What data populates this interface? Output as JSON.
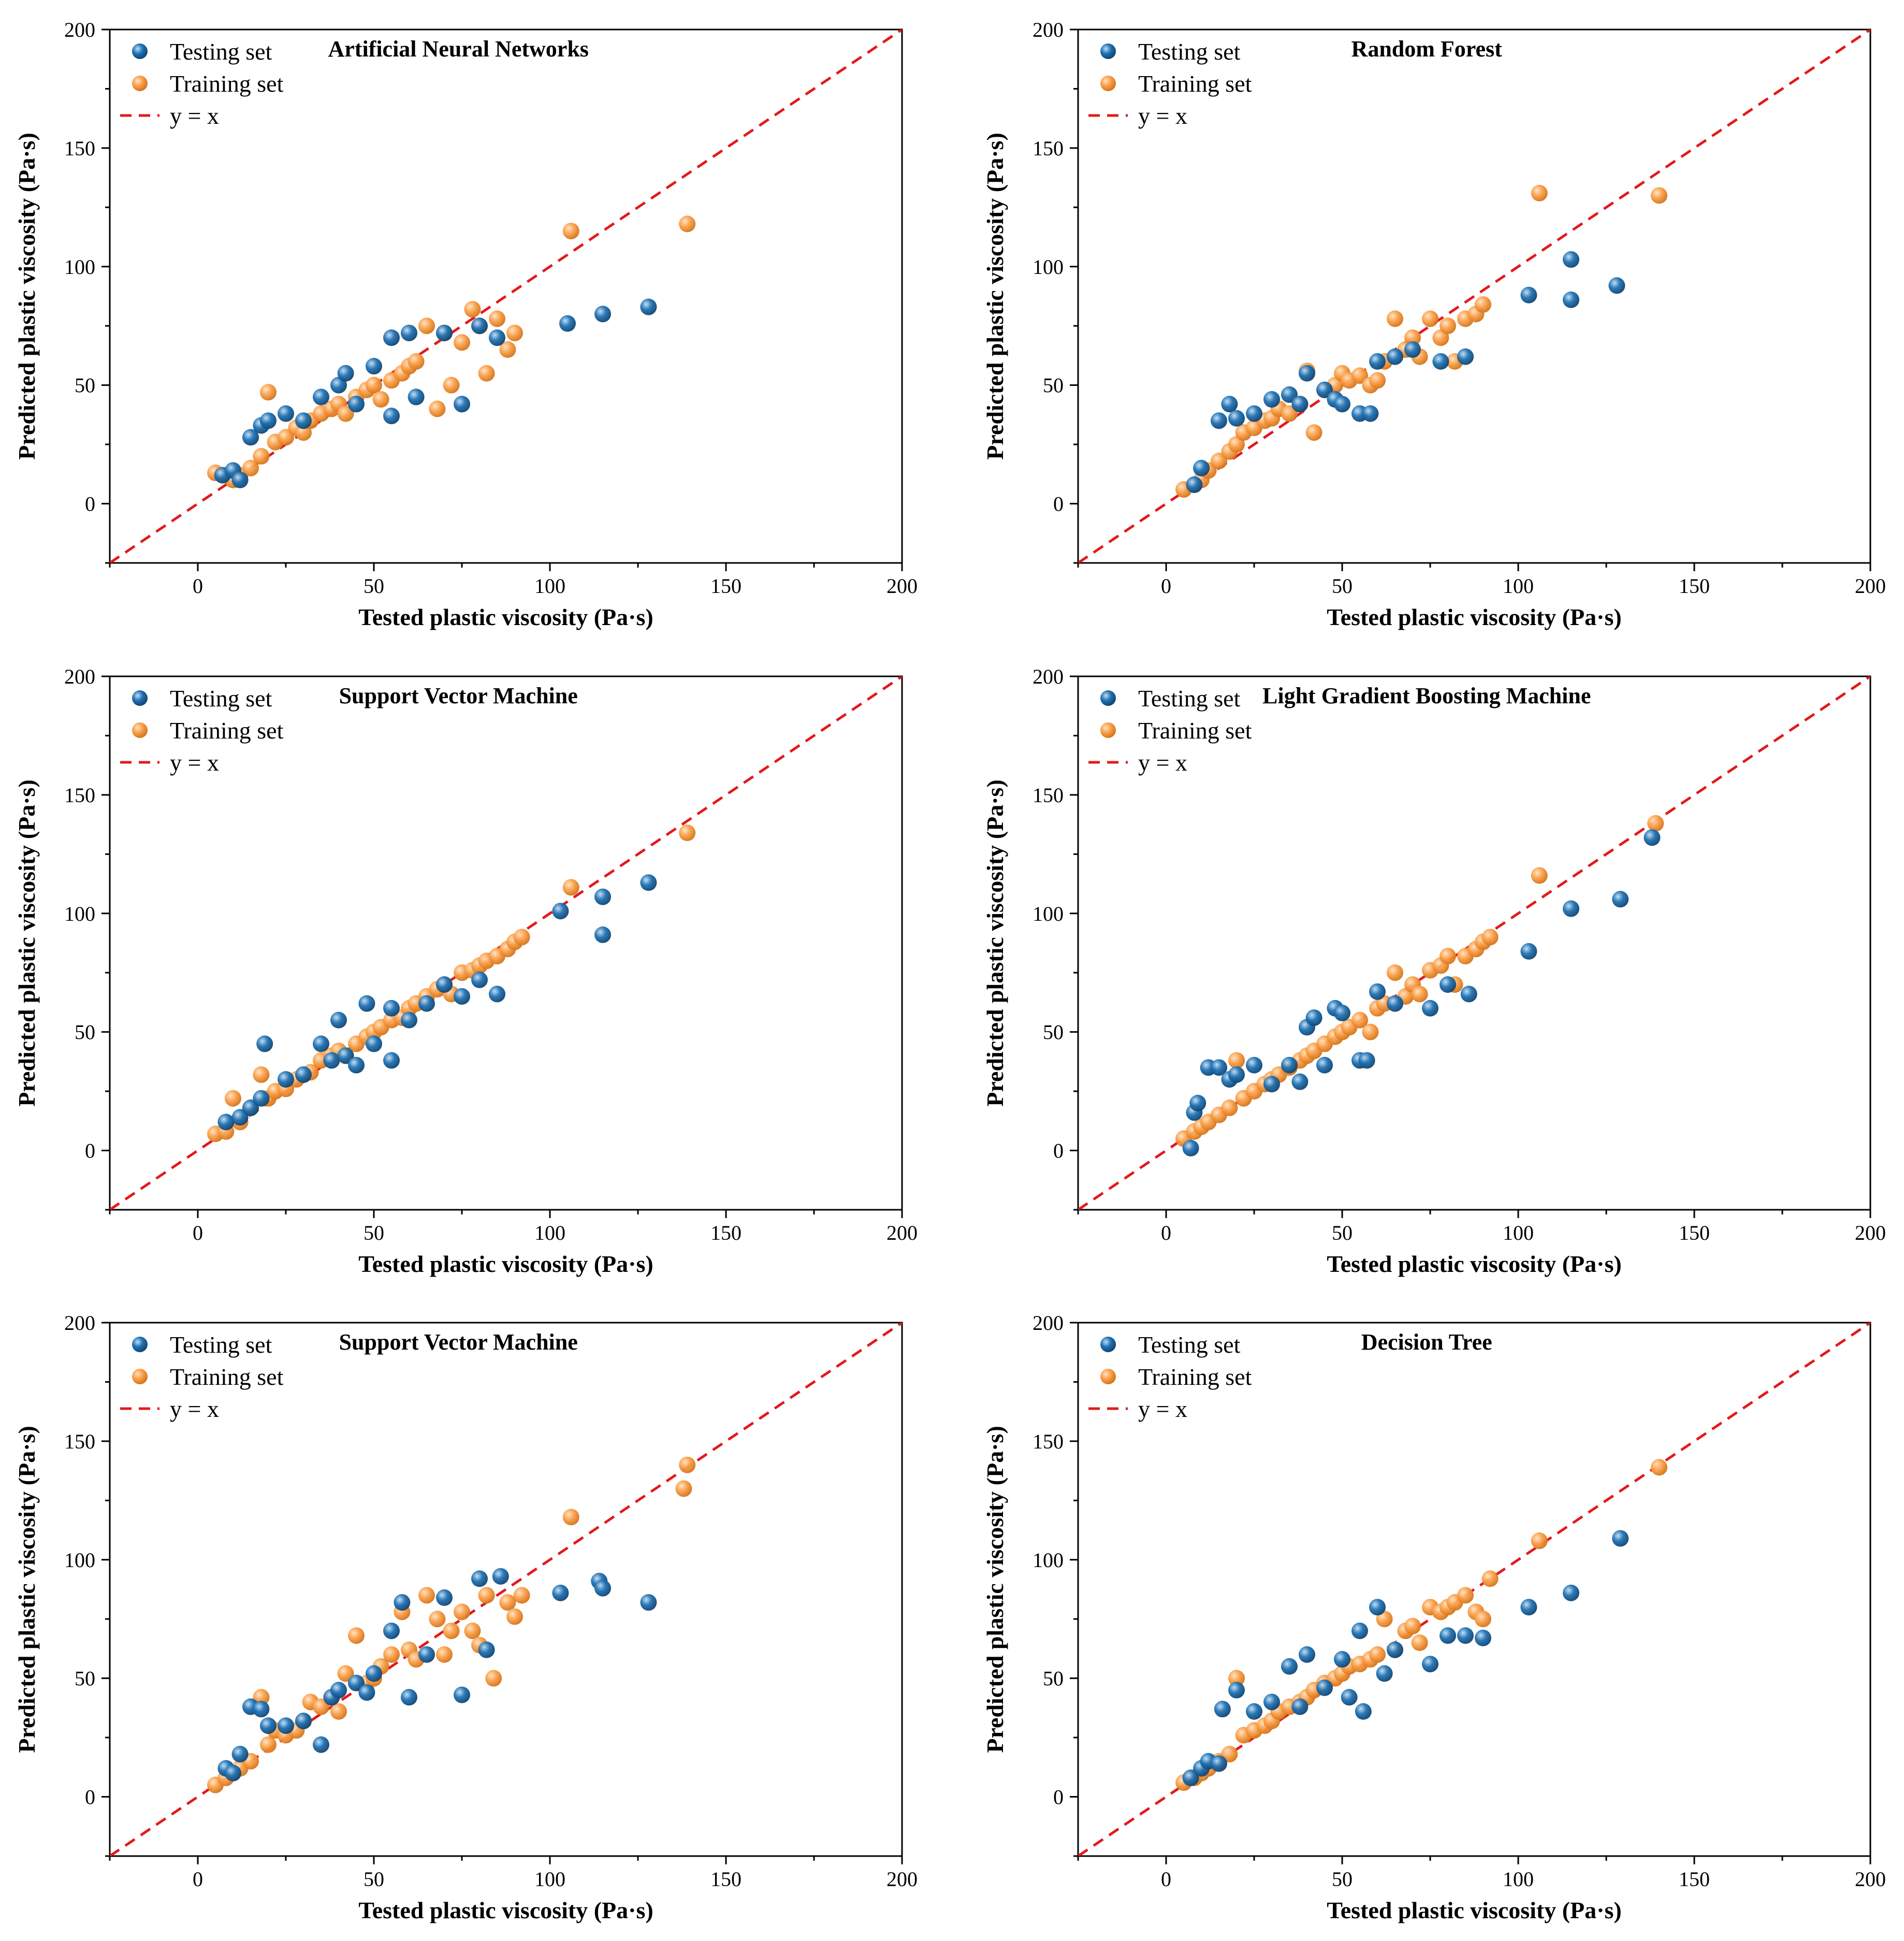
{
  "legend_labels": {
    "testing": "Testing set",
    "training": "Training set",
    "line": "y = x"
  },
  "colors": {
    "testing": "#2072b4",
    "training": "#fba04a",
    "line": "#e3191b"
  },
  "chart_data": [
    {
      "type": "scatter",
      "title": "Artificial Neural Networks",
      "xlabel": "Tested plastic viscosity (Pa·s)",
      "ylabel": "Predicted plastic viscosity (Pa·s)",
      "xlim": [
        -25,
        200
      ],
      "ylim": [
        -25,
        200
      ],
      "xticks": [
        0,
        50,
        100,
        150,
        200
      ],
      "yticks": [
        0,
        50,
        100,
        150,
        200
      ],
      "reference_line": "y = x",
      "series": [
        {
          "name": "Testing set",
          "x": [
            7,
            10,
            12,
            15,
            18,
            20,
            25,
            30,
            35,
            40,
            42,
            45,
            50,
            55,
            55,
            60,
            62,
            70,
            75,
            80,
            85,
            105,
            115,
            128
          ],
          "y": [
            12,
            14,
            10,
            28,
            33,
            35,
            38,
            35,
            45,
            50,
            55,
            42,
            58,
            70,
            37,
            72,
            45,
            72,
            42,
            75,
            70,
            76,
            80,
            83
          ]
        },
        {
          "name": "Training set",
          "x": [
            5,
            8,
            10,
            12,
            15,
            18,
            20,
            22,
            25,
            28,
            30,
            32,
            35,
            38,
            40,
            42,
            45,
            48,
            50,
            52,
            55,
            58,
            60,
            62,
            65,
            68,
            70,
            72,
            75,
            78,
            80,
            82,
            85,
            88,
            90,
            106,
            139
          ],
          "y": [
            13,
            12,
            10,
            12,
            15,
            20,
            47,
            26,
            28,
            32,
            30,
            35,
            38,
            40,
            42,
            38,
            45,
            48,
            50,
            44,
            52,
            55,
            58,
            60,
            75,
            40,
            72,
            50,
            68,
            82,
            75,
            55,
            78,
            65,
            72,
            115,
            118
          ]
        }
      ]
    },
    {
      "type": "scatter",
      "title": "Random Forest",
      "xlabel": "Tested plastic viscosity (Pa·s)",
      "ylabel": "Predicted plastic viscosity (Pa·s)",
      "xlim": [
        -25,
        200
      ],
      "ylim": [
        -25,
        200
      ],
      "xticks": [
        0,
        50,
        100,
        150,
        200
      ],
      "yticks": [
        0,
        50,
        100,
        150,
        200
      ],
      "reference_line": "y = x",
      "series": [
        {
          "name": "Testing set",
          "x": [
            8,
            10,
            15,
            18,
            20,
            25,
            30,
            35,
            38,
            40,
            45,
            48,
            50,
            55,
            58,
            60,
            65,
            70,
            78,
            85,
            103,
            115,
            115,
            128
          ],
          "y": [
            8,
            15,
            35,
            42,
            36,
            38,
            44,
            46,
            42,
            55,
            48,
            44,
            42,
            38,
            38,
            60,
            62,
            65,
            60,
            62,
            88,
            103,
            86,
            92
          ]
        },
        {
          "name": "Training set",
          "x": [
            5,
            8,
            10,
            12,
            15,
            18,
            20,
            22,
            25,
            28,
            30,
            32,
            35,
            38,
            40,
            42,
            45,
            48,
            50,
            52,
            55,
            58,
            60,
            62,
            65,
            68,
            70,
            72,
            75,
            78,
            80,
            82,
            85,
            88,
            90,
            106,
            140
          ],
          "y": [
            6,
            8,
            10,
            14,
            18,
            22,
            25,
            30,
            32,
            35,
            36,
            40,
            38,
            42,
            56,
            30,
            48,
            50,
            55,
            52,
            54,
            50,
            52,
            60,
            78,
            65,
            70,
            62,
            78,
            70,
            75,
            60,
            78,
            80,
            84,
            131,
            130
          ]
        }
      ]
    },
    {
      "type": "scatter",
      "title": "Support Vector Machine",
      "xlabel": "Tested plastic viscosity (Pa·s)",
      "ylabel": "Predicted plastic viscosity (Pa·s)",
      "xlim": [
        -25,
        200
      ],
      "ylim": [
        -25,
        200
      ],
      "xticks": [
        0,
        50,
        100,
        150,
        200
      ],
      "yticks": [
        0,
        50,
        100,
        150,
        200
      ],
      "reference_line": "y = x",
      "series": [
        {
          "name": "Testing set",
          "x": [
            8,
            12,
            15,
            18,
            19,
            25,
            30,
            35,
            38,
            40,
            42,
            45,
            48,
            50,
            55,
            55,
            60,
            65,
            70,
            75,
            80,
            85,
            103,
            115,
            115,
            128
          ],
          "y": [
            12,
            14,
            18,
            22,
            45,
            30,
            32,
            45,
            38,
            55,
            40,
            36,
            62,
            45,
            38,
            60,
            55,
            62,
            70,
            65,
            72,
            66,
            101,
            91,
            107,
            113
          ]
        },
        {
          "name": "Training set",
          "x": [
            5,
            8,
            10,
            12,
            15,
            18,
            20,
            22,
            25,
            28,
            30,
            32,
            35,
            38,
            40,
            42,
            45,
            48,
            50,
            52,
            55,
            58,
            60,
            62,
            65,
            68,
            70,
            72,
            75,
            78,
            80,
            82,
            85,
            88,
            90,
            92,
            106,
            139
          ],
          "y": [
            7,
            8,
            22,
            12,
            18,
            32,
            22,
            25,
            26,
            30,
            32,
            33,
            38,
            40,
            42,
            40,
            45,
            48,
            50,
            52,
            55,
            56,
            60,
            62,
            65,
            68,
            70,
            66,
            75,
            76,
            78,
            80,
            82,
            85,
            88,
            90,
            111,
            134
          ]
        }
      ]
    },
    {
      "type": "scatter",
      "title": "Light Gradient Boosting Machine",
      "xlabel": "Tested plastic viscosity (Pa·s)",
      "ylabel": "Predicted plastic viscosity (Pa·s)",
      "xlim": [
        -25,
        200
      ],
      "ylim": [
        -25,
        200
      ],
      "xticks": [
        0,
        50,
        100,
        150,
        200
      ],
      "yticks": [
        0,
        50,
        100,
        150,
        200
      ],
      "reference_line": "y = x",
      "series": [
        {
          "name": "Testing set",
          "x": [
            7,
            8,
            9,
            12,
            15,
            18,
            20,
            25,
            30,
            35,
            38,
            40,
            42,
            45,
            48,
            50,
            55,
            57,
            60,
            65,
            75,
            80,
            86,
            103,
            115,
            129,
            138
          ],
          "y": [
            1,
            16,
            20,
            35,
            35,
            30,
            32,
            36,
            28,
            36,
            29,
            52,
            56,
            36,
            60,
            58,
            38,
            38,
            67,
            62,
            60,
            70,
            66,
            84,
            102,
            106,
            132
          ]
        },
        {
          "name": "Training set",
          "x": [
            5,
            8,
            10,
            12,
            15,
            18,
            20,
            22,
            25,
            28,
            30,
            32,
            35,
            38,
            40,
            42,
            45,
            48,
            50,
            52,
            55,
            58,
            60,
            62,
            65,
            68,
            70,
            72,
            75,
            78,
            80,
            82,
            85,
            88,
            90,
            92,
            106,
            139
          ],
          "y": [
            5,
            8,
            10,
            12,
            15,
            18,
            38,
            22,
            25,
            28,
            30,
            32,
            35,
            38,
            40,
            42,
            45,
            48,
            50,
            52,
            55,
            50,
            60,
            62,
            75,
            65,
            70,
            66,
            76,
            78,
            82,
            70,
            82,
            85,
            88,
            90,
            116,
            138
          ]
        }
      ]
    },
    {
      "type": "scatter",
      "title": "Support Vector Machine",
      "xlabel": "Tested plastic viscosity (Pa·s)",
      "ylabel": "Predicted plastic viscosity (Pa·s)",
      "xlim": [
        -25,
        200
      ],
      "ylim": [
        -25,
        200
      ],
      "xticks": [
        0,
        50,
        100,
        150,
        200
      ],
      "yticks": [
        0,
        50,
        100,
        150,
        200
      ],
      "reference_line": "y = x",
      "series": [
        {
          "name": "Testing set",
          "x": [
            8,
            10,
            12,
            15,
            18,
            20,
            25,
            30,
            35,
            38,
            40,
            45,
            48,
            50,
            55,
            58,
            60,
            65,
            70,
            75,
            80,
            82,
            86,
            103,
            114,
            115,
            128
          ],
          "y": [
            12,
            10,
            18,
            38,
            37,
            30,
            30,
            32,
            22,
            42,
            45,
            48,
            44,
            52,
            70,
            82,
            42,
            60,
            84,
            43,
            92,
            62,
            93,
            86,
            91,
            88,
            82
          ]
        },
        {
          "name": "Training set",
          "x": [
            5,
            8,
            10,
            12,
            15,
            18,
            20,
            22,
            25,
            28,
            30,
            32,
            35,
            38,
            40,
            42,
            45,
            48,
            50,
            52,
            55,
            58,
            60,
            62,
            65,
            68,
            70,
            72,
            75,
            78,
            80,
            82,
            84,
            88,
            90,
            92,
            106,
            138,
            139
          ],
          "y": [
            5,
            8,
            10,
            12,
            15,
            42,
            22,
            28,
            26,
            28,
            32,
            40,
            38,
            42,
            36,
            52,
            68,
            48,
            50,
            55,
            60,
            78,
            62,
            58,
            85,
            75,
            60,
            70,
            78,
            70,
            64,
            85,
            50,
            82,
            76,
            85,
            118,
            130,
            140
          ]
        }
      ]
    },
    {
      "type": "scatter",
      "title": "Decision Tree",
      "xlabel": "Tested plastic viscosity (Pa·s)",
      "ylabel": "Predicted plastic viscosity (Pa·s)",
      "xlim": [
        -25,
        200
      ],
      "ylim": [
        -25,
        200
      ],
      "xticks": [
        0,
        50,
        100,
        150,
        200
      ],
      "yticks": [
        0,
        50,
        100,
        150,
        200
      ],
      "reference_line": "y = x",
      "series": [
        {
          "name": "Testing set",
          "x": [
            7,
            10,
            12,
            15,
            16,
            20,
            25,
            30,
            35,
            38,
            40,
            45,
            50,
            52,
            55,
            56,
            60,
            62,
            65,
            75,
            80,
            85,
            90,
            103,
            115,
            129
          ],
          "y": [
            8,
            12,
            15,
            14,
            37,
            45,
            36,
            40,
            55,
            38,
            60,
            46,
            58,
            42,
            70,
            36,
            80,
            52,
            62,
            56,
            68,
            68,
            67,
            80,
            86,
            109
          ]
        },
        {
          "name": "Training set",
          "x": [
            5,
            8,
            10,
            12,
            15,
            18,
            20,
            22,
            25,
            28,
            30,
            32,
            35,
            38,
            40,
            42,
            45,
            48,
            50,
            52,
            55,
            58,
            60,
            62,
            65,
            68,
            70,
            72,
            75,
            78,
            80,
            82,
            85,
            88,
            90,
            92,
            106,
            140
          ],
          "y": [
            6,
            8,
            10,
            12,
            15,
            18,
            50,
            26,
            28,
            30,
            32,
            36,
            38,
            40,
            42,
            45,
            48,
            50,
            52,
            55,
            56,
            58,
            60,
            75,
            62,
            70,
            72,
            65,
            80,
            78,
            80,
            82,
            85,
            78,
            75,
            92,
            108,
            139
          ]
        }
      ]
    }
  ]
}
